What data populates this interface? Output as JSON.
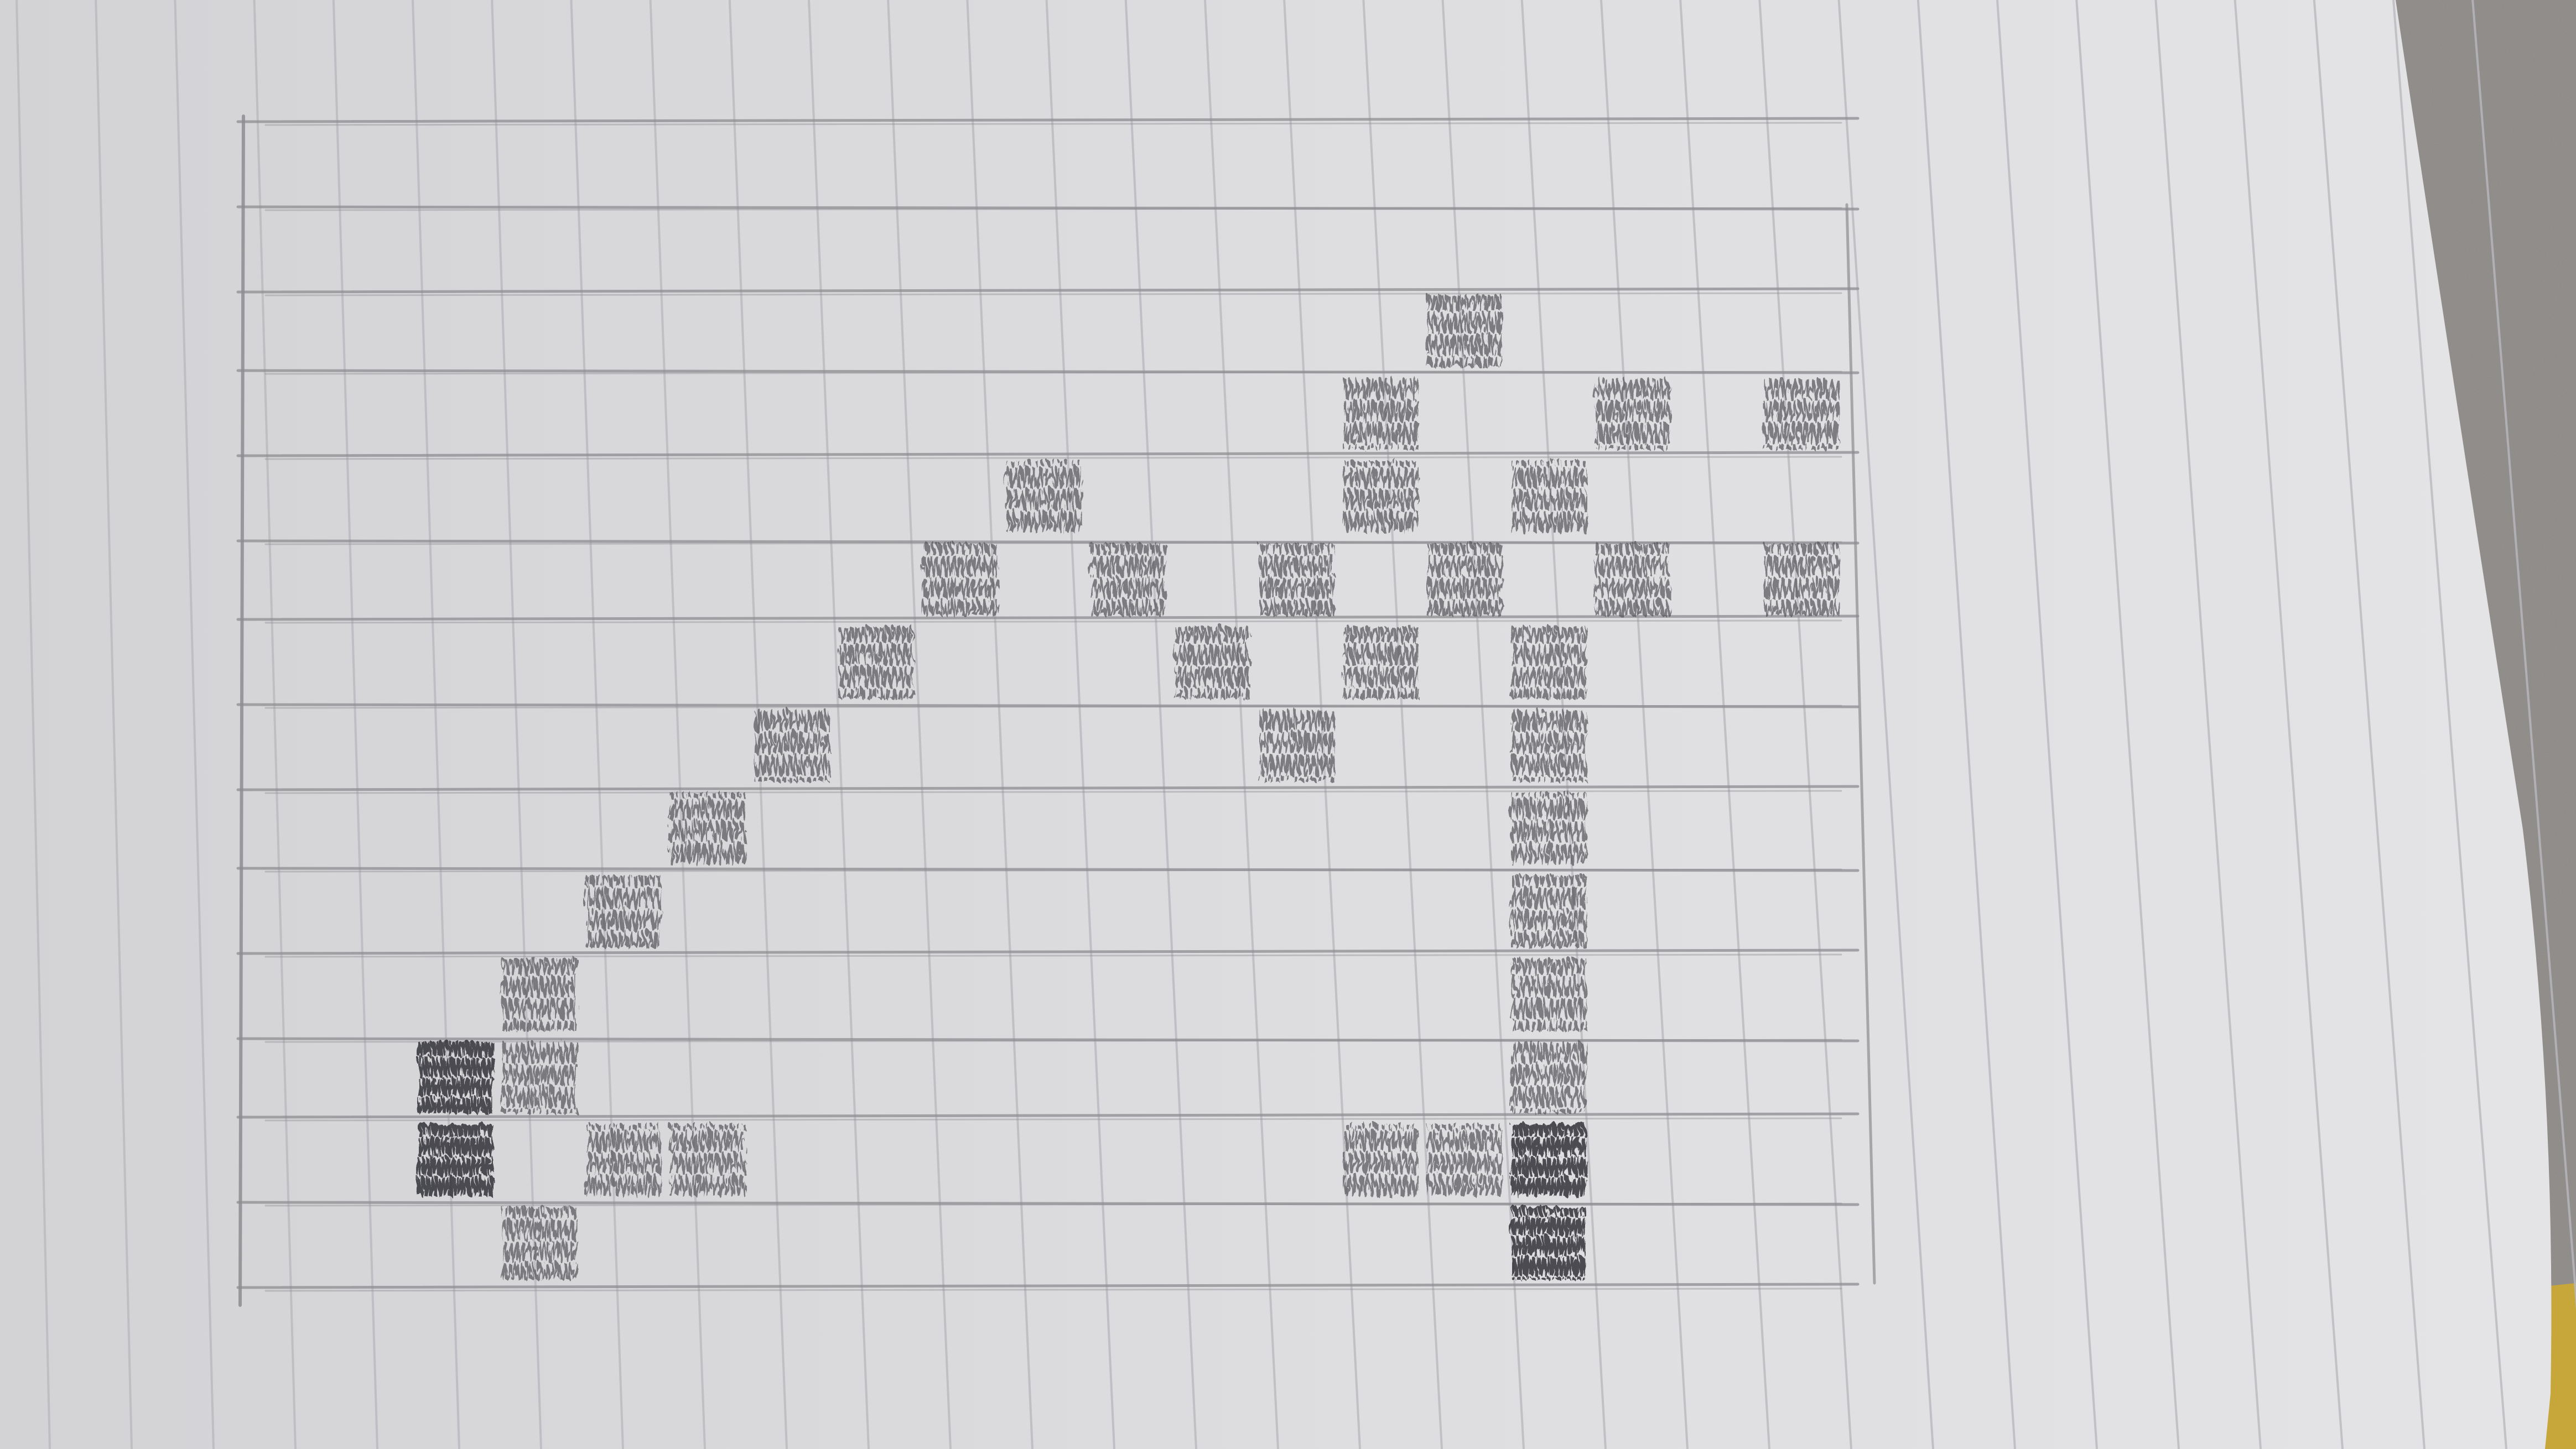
{
  "scene": {
    "description_free": true,
    "paper_color": "#dcdcde",
    "paper_shadow_color": "#c9c9cc",
    "ruled_line_color": "#b9b9bf",
    "pencil_line_color": "#8d8d92",
    "shading_color": "#58585d",
    "dark_shading_color": "#3a3a3e",
    "desk_color": "#8a8784",
    "desk_speckle_color": "#6f6c69",
    "notebook_edge_color": "#c8a73a"
  },
  "grid": {
    "columns": 19,
    "rows": 14,
    "filled_cells": [
      [
        14,
        2
      ],
      [
        13,
        3
      ],
      [
        16,
        3
      ],
      [
        18,
        3
      ],
      [
        9,
        4
      ],
      [
        13,
        4
      ],
      [
        15,
        4
      ],
      [
        18,
        5
      ],
      [
        8,
        5
      ],
      [
        10,
        5
      ],
      [
        12,
        5
      ],
      [
        14,
        5
      ],
      [
        16,
        5
      ],
      [
        7,
        6
      ],
      [
        11,
        6
      ],
      [
        13,
        6
      ],
      [
        15,
        6
      ],
      [
        6,
        7
      ],
      [
        12,
        7
      ],
      [
        15,
        7
      ],
      [
        5,
        8
      ],
      [
        15,
        8
      ],
      [
        4,
        9
      ],
      [
        15,
        9
      ],
      [
        3,
        10
      ],
      [
        15,
        10
      ],
      [
        2,
        11
      ],
      [
        3,
        11
      ],
      [
        15,
        11
      ],
      [
        2,
        12
      ],
      [
        4,
        12
      ],
      [
        5,
        12
      ],
      [
        13,
        12
      ],
      [
        14,
        12
      ],
      [
        15,
        12
      ],
      [
        3,
        13
      ],
      [
        15,
        13
      ]
    ]
  }
}
